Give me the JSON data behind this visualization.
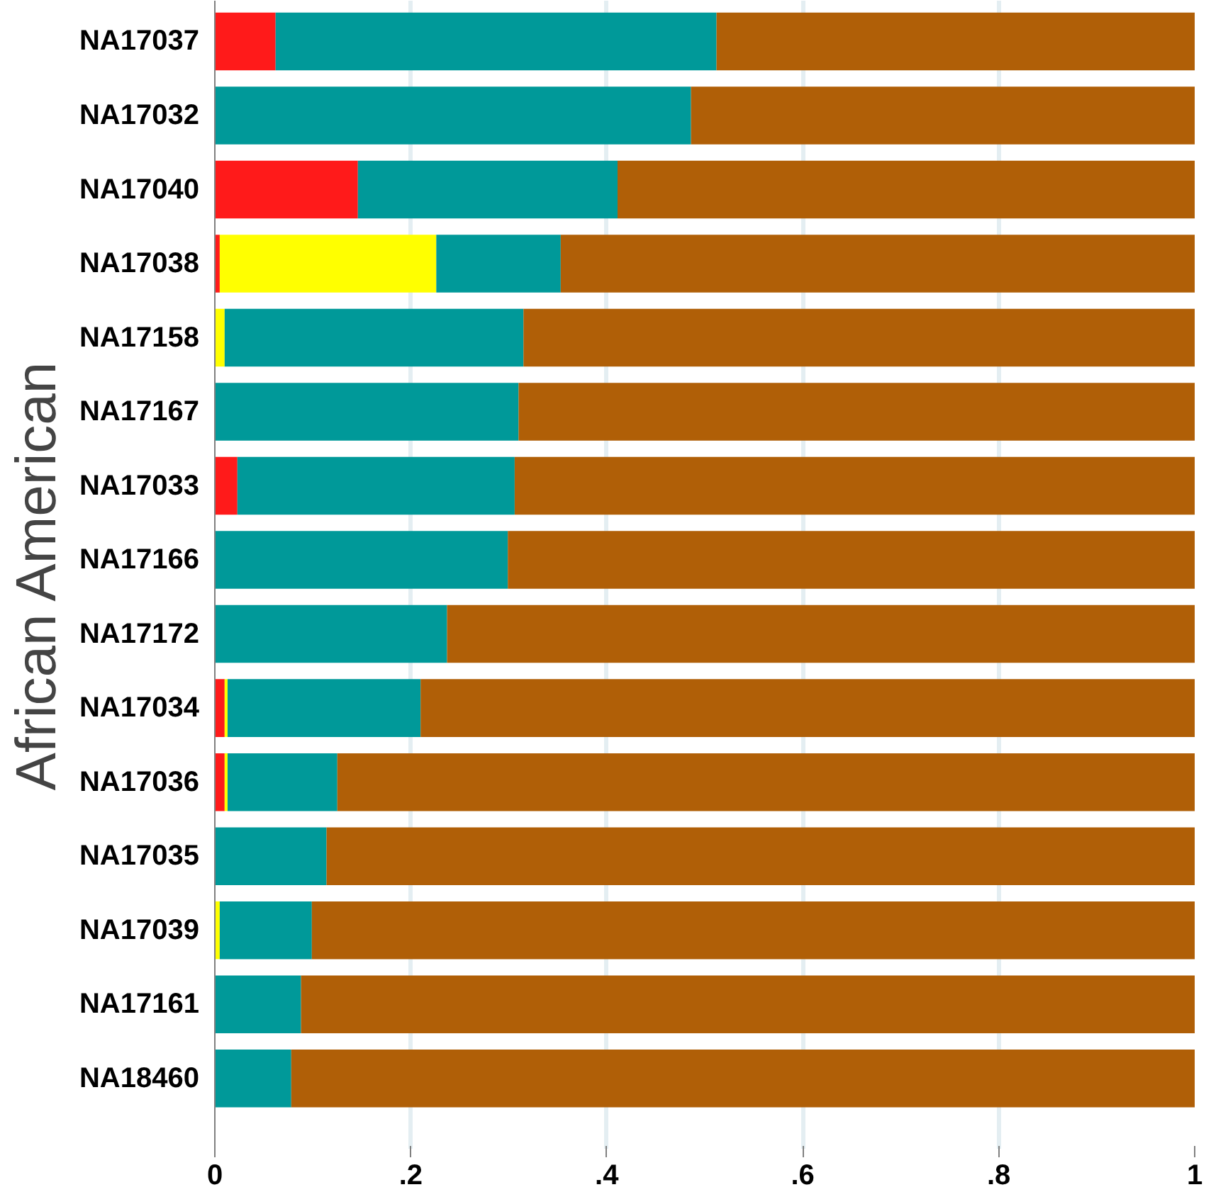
{
  "chart_data": {
    "type": "bar",
    "orientation": "horizontal",
    "stacked": true,
    "ylabel": "African American",
    "categories": [
      "NA17037",
      "NA17032",
      "NA17040",
      "NA17038",
      "NA17158",
      "NA17167",
      "NA17033",
      "NA17166",
      "NA17172",
      "NA17034",
      "NA17036",
      "NA17035",
      "NA17039",
      "NA17161",
      "NA18460"
    ],
    "series": [
      {
        "color": "#ff1a1a",
        "values": [
          0.062,
          null,
          0.146,
          0.005,
          null,
          null,
          0.023,
          null,
          null,
          0.01,
          0.01,
          null,
          null,
          null,
          null
        ]
      },
      {
        "color": "#ffff00",
        "values": [
          null,
          null,
          null,
          0.221,
          0.01,
          null,
          null,
          null,
          null,
          0.003,
          0.003,
          null,
          0.005,
          null,
          null
        ]
      },
      {
        "color": "#009999",
        "values": [
          0.45,
          0.486,
          0.265,
          0.127,
          0.305,
          0.31,
          0.283,
          0.299,
          0.237,
          0.197,
          0.112,
          0.114,
          0.094,
          0.088,
          0.078
        ]
      },
      {
        "color": "#b05f07",
        "values": [
          0.488,
          0.514,
          0.589,
          0.647,
          0.685,
          0.69,
          0.694,
          0.701,
          0.763,
          0.79,
          0.875,
          0.886,
          0.901,
          0.912,
          0.922
        ]
      }
    ],
    "xlim": [
      0,
      1
    ],
    "xticks": [
      0,
      {
        "value": 0.2,
        "label": ".2"
      },
      {
        "value": 0.4,
        "label": ".4"
      },
      {
        "value": 0.6,
        "label": ".6"
      },
      {
        "value": 0.8,
        "label": ".8"
      },
      1
    ],
    "grid": "x"
  }
}
